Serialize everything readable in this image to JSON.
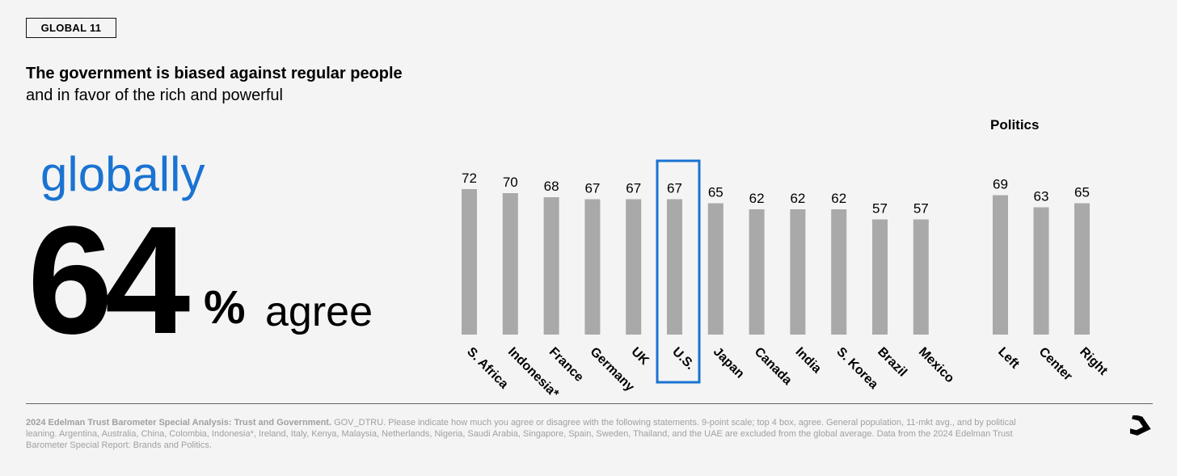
{
  "badge": "GLOBAL 11",
  "title": "The government is biased against regular people",
  "subtitle": "and in favor of the rich and powerful",
  "globally": "globally",
  "global_value": "64",
  "pct_sign": "%",
  "agree": "agree",
  "politics_label": "Politics",
  "footnote_bold": "2024 Edelman Trust Barometer Special Analysis: Trust and Government.",
  "footnote_text": " GOV_DTRU. Please indicate how much you agree or disagree with the following statements. 9-point scale; top 4 box, agree. General population, 11-mkt avg., and by political leaning. Argentina, Australia, China, Colombia, Indonesia*, Ireland, Italy, Kenya, Malaysia, Netherlands, Nigeria, Saudi Arabia, Singapore, Spain, Sweden, Thailand, and the UAE are excluded from the global average. Data from the 2024 Edelman Trust Barometer Special Report: Brands and Politics.",
  "colors": {
    "bar": "#a9a9a9",
    "highlight": "#1a73d1",
    "accent_text": "#1a73d1"
  },
  "icons": {
    "next": "arrow-down-right-icon"
  },
  "chart_data": [
    {
      "type": "bar",
      "categories": [
        "S. Africa",
        "Indonesia*",
        "France",
        "Germany",
        "UK",
        "U.S.",
        "Japan",
        "Canada",
        "India",
        "S. Korea",
        "Brazil",
        "Mexico"
      ],
      "values": [
        72,
        70,
        68,
        67,
        67,
        67,
        65,
        62,
        62,
        62,
        57,
        57
      ],
      "highlighted": "U.S.",
      "ylim": [
        0,
        100
      ]
    },
    {
      "type": "bar",
      "title": "Politics",
      "categories": [
        "Left",
        "Center",
        "Right"
      ],
      "values": [
        69,
        63,
        65
      ],
      "ylim": [
        0,
        100
      ]
    }
  ]
}
